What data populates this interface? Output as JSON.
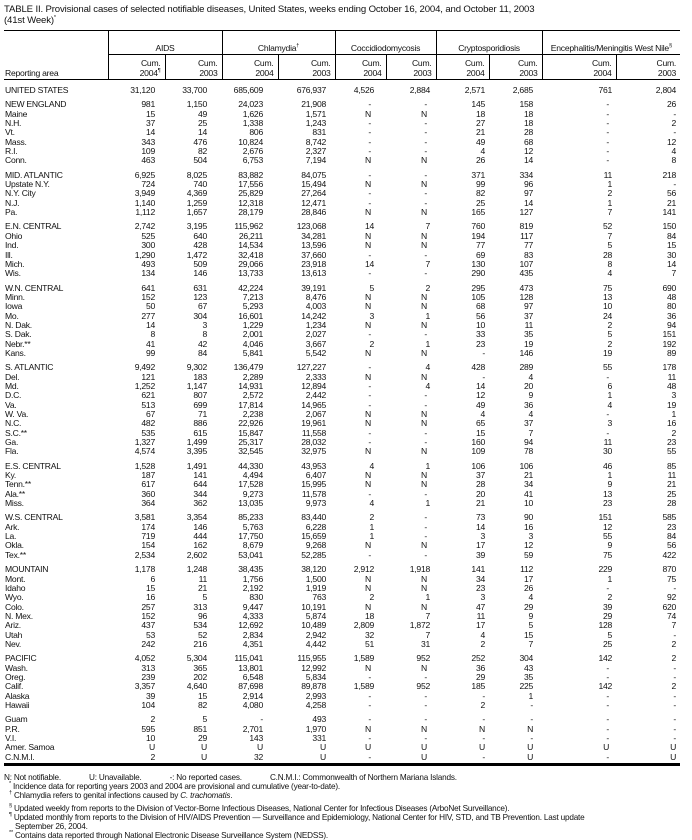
{
  "title": {
    "line1": "TABLE II. Provisional cases of selected notifiable diseases, United States, weeks ending October 16, 2004, and October 11, 2003",
    "line2": "(41st Week)",
    "line2_mark": "*"
  },
  "header": {
    "area_label": "Reporting area",
    "groups": [
      {
        "label": "AIDS",
        "mark": ""
      },
      {
        "label": "Chlamydia",
        "mark": "†"
      },
      {
        "label": "Coccidiodomycosis",
        "mark": ""
      },
      {
        "label": "Cryptosporidiosis",
        "mark": ""
      },
      {
        "label": "Encephalitis/Meningitis West Nile",
        "mark": "§"
      }
    ],
    "subcols": [
      {
        "l1": "Cum.",
        "l2": "2004",
        "mark": "¶"
      },
      {
        "l1": "Cum.",
        "l2": "2003",
        "mark": ""
      },
      {
        "l1": "Cum.",
        "l2": "2004",
        "mark": ""
      },
      {
        "l1": "Cum.",
        "l2": "2003",
        "mark": ""
      },
      {
        "l1": "Cum.",
        "l2": "2004",
        "mark": ""
      },
      {
        "l1": "Cum.",
        "l2": "2003",
        "mark": ""
      },
      {
        "l1": "Cum.",
        "l2": "2004",
        "mark": ""
      },
      {
        "l1": "Cum.",
        "l2": "2003",
        "mark": ""
      },
      {
        "l1": "Cum.",
        "l2": "2004",
        "mark": ""
      },
      {
        "l1": "Cum.",
        "l2": "2003",
        "mark": ""
      }
    ]
  },
  "groups": [
    [
      [
        "UNITED STATES",
        "31,120",
        "33,700",
        "685,609",
        "676,937",
        "4,526",
        "2,884",
        "2,571",
        "2,685",
        "761",
        "2,804"
      ]
    ],
    [
      [
        "NEW ENGLAND",
        "981",
        "1,150",
        "24,023",
        "21,908",
        "-",
        "-",
        "145",
        "158",
        "-",
        "26"
      ],
      [
        "Maine",
        "15",
        "49",
        "1,626",
        "1,571",
        "N",
        "N",
        "18",
        "18",
        "-",
        "-"
      ],
      [
        "N.H.",
        "37",
        "25",
        "1,338",
        "1,243",
        "-",
        "-",
        "27",
        "18",
        "-",
        "2"
      ],
      [
        "Vt.",
        "14",
        "14",
        "806",
        "831",
        "-",
        "-",
        "21",
        "28",
        "-",
        "-"
      ],
      [
        "Mass.",
        "343",
        "476",
        "10,824",
        "8,742",
        "-",
        "-",
        "49",
        "68",
        "-",
        "12"
      ],
      [
        "R.I.",
        "109",
        "82",
        "2,676",
        "2,327",
        "-",
        "-",
        "4",
        "12",
        "-",
        "4"
      ],
      [
        "Conn.",
        "463",
        "504",
        "6,753",
        "7,194",
        "N",
        "N",
        "26",
        "14",
        "-",
        "8"
      ]
    ],
    [
      [
        "MID. ATLANTIC",
        "6,925",
        "8,025",
        "83,882",
        "84,075",
        "-",
        "-",
        "371",
        "334",
        "11",
        "218"
      ],
      [
        "Upstate N.Y.",
        "724",
        "740",
        "17,556",
        "15,494",
        "N",
        "N",
        "99",
        "96",
        "1",
        "-"
      ],
      [
        "N.Y. City",
        "3,949",
        "4,369",
        "25,829",
        "27,264",
        "-",
        "-",
        "82",
        "97",
        "2",
        "56"
      ],
      [
        "N.J.",
        "1,140",
        "1,259",
        "12,318",
        "12,471",
        "-",
        "-",
        "25",
        "14",
        "1",
        "21"
      ],
      [
        "Pa.",
        "1,112",
        "1,657",
        "28,179",
        "28,846",
        "N",
        "N",
        "165",
        "127",
        "7",
        "141"
      ]
    ],
    [
      [
        "E.N. CENTRAL",
        "2,742",
        "3,195",
        "115,962",
        "123,068",
        "14",
        "7",
        "760",
        "819",
        "52",
        "150"
      ],
      [
        "Ohio",
        "525",
        "640",
        "26,211",
        "34,281",
        "N",
        "N",
        "194",
        "117",
        "7",
        "84"
      ],
      [
        "Ind.",
        "300",
        "428",
        "14,534",
        "13,596",
        "N",
        "N",
        "77",
        "77",
        "5",
        "15"
      ],
      [
        "Ill.",
        "1,290",
        "1,472",
        "32,418",
        "37,660",
        "-",
        "-",
        "69",
        "83",
        "28",
        "30"
      ],
      [
        "Mich.",
        "493",
        "509",
        "29,066",
        "23,918",
        "14",
        "7",
        "130",
        "107",
        "8",
        "14"
      ],
      [
        "Wis.",
        "134",
        "146",
        "13,733",
        "13,613",
        "-",
        "-",
        "290",
        "435",
        "4",
        "7"
      ]
    ],
    [
      [
        "W.N. CENTRAL",
        "641",
        "631",
        "42,224",
        "39,191",
        "5",
        "2",
        "295",
        "473",
        "75",
        "690"
      ],
      [
        "Minn.",
        "152",
        "123",
        "7,213",
        "8,476",
        "N",
        "N",
        "105",
        "128",
        "13",
        "48"
      ],
      [
        "Iowa",
        "50",
        "67",
        "5,293",
        "4,003",
        "N",
        "N",
        "68",
        "97",
        "10",
        "80"
      ],
      [
        "Mo.",
        "277",
        "304",
        "16,601",
        "14,242",
        "3",
        "1",
        "56",
        "37",
        "24",
        "36"
      ],
      [
        "N. Dak.",
        "14",
        "3",
        "1,229",
        "1,234",
        "N",
        "N",
        "10",
        "11",
        "2",
        "94"
      ],
      [
        "S. Dak.",
        "8",
        "8",
        "2,001",
        "2,027",
        "-",
        "-",
        "33",
        "35",
        "5",
        "151"
      ],
      [
        "Nebr.**",
        "41",
        "42",
        "4,046",
        "3,667",
        "2",
        "1",
        "23",
        "19",
        "2",
        "192"
      ],
      [
        "Kans.",
        "99",
        "84",
        "5,841",
        "5,542",
        "N",
        "N",
        "-",
        "146",
        "19",
        "89"
      ]
    ],
    [
      [
        "S. ATLANTIC",
        "9,492",
        "9,302",
        "136,479",
        "127,227",
        "-",
        "4",
        "428",
        "289",
        "55",
        "178"
      ],
      [
        "Del.",
        "121",
        "183",
        "2,289",
        "2,333",
        "N",
        "N",
        "-",
        "4",
        "-",
        "11"
      ],
      [
        "Md.",
        "1,252",
        "1,147",
        "14,931",
        "12,894",
        "-",
        "4",
        "14",
        "20",
        "6",
        "48"
      ],
      [
        "D.C.",
        "621",
        "807",
        "2,572",
        "2,442",
        "-",
        "-",
        "12",
        "9",
        "1",
        "3"
      ],
      [
        "Va.",
        "513",
        "699",
        "17,814",
        "14,965",
        "-",
        "-",
        "49",
        "36",
        "4",
        "19"
      ],
      [
        "W. Va.",
        "67",
        "71",
        "2,238",
        "2,067",
        "N",
        "N",
        "4",
        "4",
        "-",
        "1"
      ],
      [
        "N.C.",
        "482",
        "886",
        "22,926",
        "19,961",
        "N",
        "N",
        "65",
        "37",
        "3",
        "16"
      ],
      [
        "S.C.**",
        "535",
        "615",
        "15,847",
        "11,558",
        "-",
        "-",
        "15",
        "7",
        "-",
        "2"
      ],
      [
        "Ga.",
        "1,327",
        "1,499",
        "25,317",
        "28,032",
        "-",
        "-",
        "160",
        "94",
        "11",
        "23"
      ],
      [
        "Fla.",
        "4,574",
        "3,395",
        "32,545",
        "32,975",
        "N",
        "N",
        "109",
        "78",
        "30",
        "55"
      ]
    ],
    [
      [
        "E.S. CENTRAL",
        "1,528",
        "1,491",
        "44,330",
        "43,953",
        "4",
        "1",
        "106",
        "106",
        "46",
        "85"
      ],
      [
        "Ky.",
        "187",
        "141",
        "4,494",
        "6,407",
        "N",
        "N",
        "37",
        "21",
        "1",
        "11"
      ],
      [
        "Tenn.**",
        "617",
        "644",
        "17,528",
        "15,995",
        "N",
        "N",
        "28",
        "34",
        "9",
        "21"
      ],
      [
        "Ala.**",
        "360",
        "344",
        "9,273",
        "11,578",
        "-",
        "-",
        "20",
        "41",
        "13",
        "25"
      ],
      [
        "Miss.",
        "364",
        "362",
        "13,035",
        "9,973",
        "4",
        "1",
        "21",
        "10",
        "23",
        "28"
      ]
    ],
    [
      [
        "W.S. CENTRAL",
        "3,581",
        "3,354",
        "85,233",
        "83,440",
        "2",
        "-",
        "73",
        "90",
        "151",
        "585"
      ],
      [
        "Ark.",
        "174",
        "146",
        "5,763",
        "6,228",
        "1",
        "-",
        "14",
        "16",
        "12",
        "23"
      ],
      [
        "La.",
        "719",
        "444",
        "17,750",
        "15,659",
        "1",
        "-",
        "3",
        "3",
        "55",
        "84"
      ],
      [
        "Okla.",
        "154",
        "162",
        "8,679",
        "9,268",
        "N",
        "N",
        "17",
        "12",
        "9",
        "56"
      ],
      [
        "Tex.**",
        "2,534",
        "2,602",
        "53,041",
        "52,285",
        "-",
        "-",
        "39",
        "59",
        "75",
        "422"
      ]
    ],
    [
      [
        "MOUNTAIN",
        "1,178",
        "1,248",
        "38,435",
        "38,120",
        "2,912",
        "1,918",
        "141",
        "112",
        "229",
        "870"
      ],
      [
        "Mont.",
        "6",
        "11",
        "1,756",
        "1,500",
        "N",
        "N",
        "34",
        "17",
        "1",
        "75"
      ],
      [
        "Idaho",
        "15",
        "21",
        "2,192",
        "1,919",
        "N",
        "N",
        "23",
        "26",
        "-",
        "-"
      ],
      [
        "Wyo.",
        "16",
        "5",
        "830",
        "763",
        "2",
        "1",
        "3",
        "4",
        "2",
        "92"
      ],
      [
        "Colo.",
        "257",
        "313",
        "9,447",
        "10,191",
        "N",
        "N",
        "47",
        "29",
        "39",
        "620"
      ],
      [
        "N. Mex.",
        "152",
        "96",
        "4,333",
        "5,874",
        "18",
        "7",
        "11",
        "9",
        "29",
        "74"
      ],
      [
        "Ariz.",
        "437",
        "534",
        "12,692",
        "10,489",
        "2,809",
        "1,872",
        "17",
        "5",
        "128",
        "7"
      ],
      [
        "Utah",
        "53",
        "52",
        "2,834",
        "2,942",
        "32",
        "7",
        "4",
        "15",
        "5",
        "-"
      ],
      [
        "Nev.",
        "242",
        "216",
        "4,351",
        "4,442",
        "51",
        "31",
        "2",
        "7",
        "25",
        "2"
      ]
    ],
    [
      [
        "PACIFIC",
        "4,052",
        "5,304",
        "115,041",
        "115,955",
        "1,589",
        "952",
        "252",
        "304",
        "142",
        "2"
      ],
      [
        "Wash.",
        "313",
        "365",
        "13,801",
        "12,992",
        "N",
        "N",
        "36",
        "43",
        "-",
        "-"
      ],
      [
        "Oreg.",
        "239",
        "202",
        "6,548",
        "5,834",
        "-",
        "-",
        "29",
        "35",
        "-",
        "-"
      ],
      [
        "Calif.",
        "3,357",
        "4,640",
        "87,698",
        "89,878",
        "1,589",
        "952",
        "185",
        "225",
        "142",
        "2"
      ],
      [
        "Alaska",
        "39",
        "15",
        "2,914",
        "2,993",
        "-",
        "-",
        "-",
        "1",
        "-",
        "-"
      ],
      [
        "Hawaii",
        "104",
        "82",
        "4,080",
        "4,258",
        "-",
        "-",
        "2",
        "-",
        "-",
        "-"
      ]
    ],
    [
      [
        "Guam",
        "2",
        "5",
        "-",
        "493",
        "-",
        "-",
        "-",
        "-",
        "-",
        "-"
      ],
      [
        "P.R.",
        "595",
        "851",
        "2,701",
        "1,970",
        "N",
        "N",
        "N",
        "N",
        "-",
        "-"
      ],
      [
        "V.I.",
        "10",
        "29",
        "143",
        "331",
        "-",
        "-",
        "-",
        "-",
        "-",
        "-"
      ],
      [
        "Amer. Samoa",
        "U",
        "U",
        "U",
        "U",
        "U",
        "U",
        "U",
        "U",
        "U",
        "U"
      ],
      [
        "C.N.M.I.",
        "2",
        "U",
        "32",
        "U",
        "-",
        "U",
        "-",
        "U",
        "-",
        "U"
      ]
    ]
  ],
  "notes": {
    "legend": [
      "N: Not notifiable.",
      "U: Unavailable.",
      "-: No reported cases.",
      "C.N.M.I.: Commonwealth of Northern Mariana Islands."
    ],
    "fn1": {
      "mark": "*",
      "text": "Incidence data for reporting years 2003 and 2004 are provisional and cumulative (year-to-date)."
    },
    "fn2": {
      "mark": "†",
      "text": "Chlamydia refers to genital infections caused by ",
      "italic": "C. trachomatis",
      "end": "."
    },
    "fn3": {
      "mark": "§",
      "text": "Updated weekly from reports to the Division of Vector-Borne Infectious Diseases, National Center for Infectious Diseases (ArboNet Surveillance)."
    },
    "fn4": {
      "mark": "¶",
      "text": "Updated monthly from reports to the Division of HIV/AIDS Prevention — Surveillance and Epidemiology, National Center for HIV, STD, and TB Prevention. Last update",
      "cont": "September 26, 2004."
    },
    "fn5": {
      "mark": "**",
      "text": "Contains data reported through National Electronic Disease Surveillance System (NEDSS)."
    }
  }
}
